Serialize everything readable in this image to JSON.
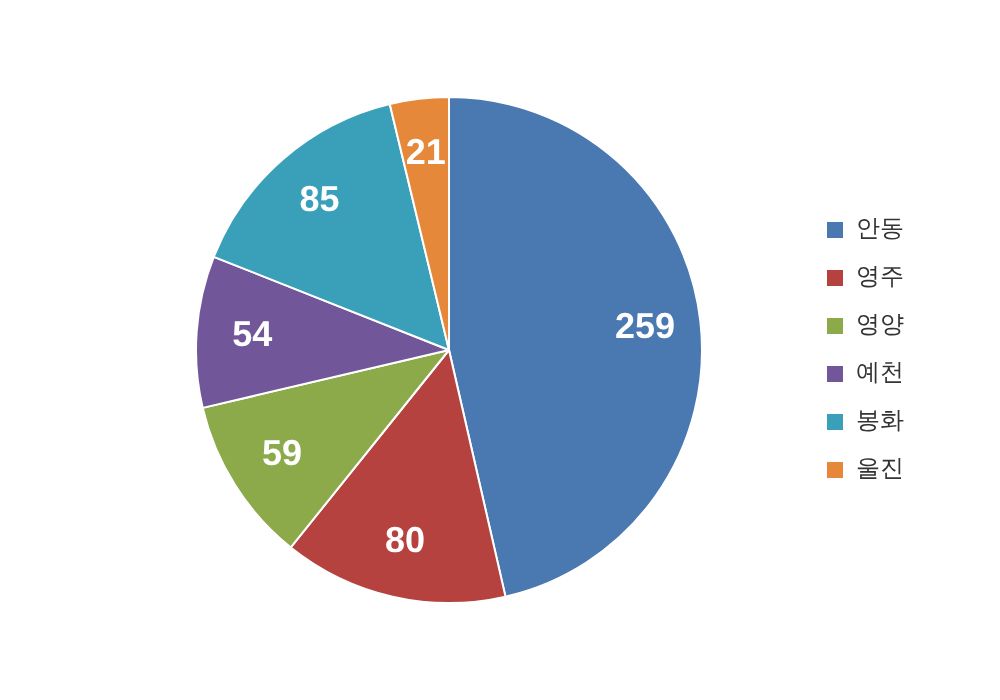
{
  "chart_data": {
    "type": "pie",
    "categories": [
      "안동",
      "영주",
      "영양",
      "예천",
      "봉화",
      "울진"
    ],
    "values": [
      259,
      80,
      59,
      54,
      85,
      21
    ],
    "colors": [
      "#4a78b0",
      "#b5423f",
      "#8caa4a",
      "#71579a",
      "#3aa0ba",
      "#e5883a"
    ],
    "data_labels": true,
    "legend": "right"
  }
}
